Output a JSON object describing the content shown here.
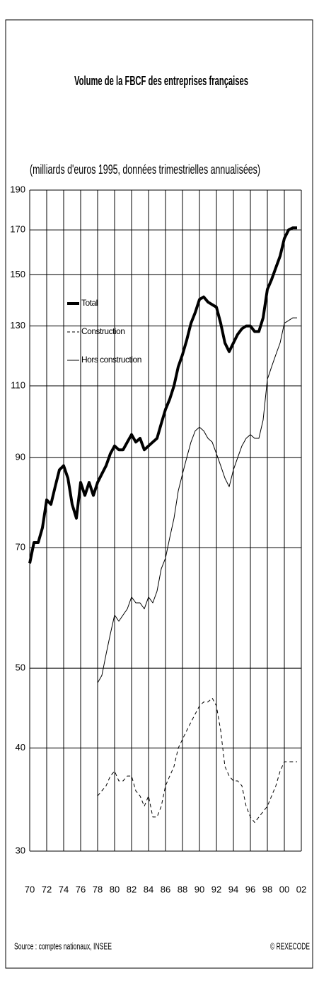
{
  "chart_data": {
    "type": "line",
    "title": "Volume de la FBCF des entreprises françaises",
    "subtitle": "(milliards d'euros 1995, données trimestrielles annualisées)",
    "source": "Source : comptes nationaux, INSEE",
    "credit": "© REXECODE",
    "yscale": "log",
    "grid": true,
    "legend": "upper left",
    "x": [
      1970,
      1970.5,
      1971,
      1971.5,
      1972,
      1972.5,
      1973,
      1973.5,
      1974,
      1974.5,
      1975,
      1975.5,
      1976,
      1976.5,
      1977,
      1977.5,
      1978,
      1978.5,
      1979,
      1979.5,
      1980,
      1980.5,
      1981,
      1981.5,
      1982,
      1982.5,
      1983,
      1983.5,
      1984,
      1984.5,
      1985,
      1985.5,
      1986,
      1986.5,
      1987,
      1987.5,
      1988,
      1988.5,
      1989,
      1989.5,
      1990,
      1990.5,
      1991,
      1991.5,
      1992,
      1992.5,
      1993,
      1993.5,
      1994,
      1994.5,
      1995,
      1995.5,
      1996,
      1996.5,
      1997,
      1997.5,
      1998,
      1998.5,
      1999,
      1999.5,
      2000,
      2000.5,
      2001,
      2001.5
    ],
    "series": [
      {
        "name": "Total",
        "color": "#000000",
        "line_width": 4,
        "dashed": false,
        "values": [
          67,
          71,
          71,
          74,
          80,
          79,
          83,
          87,
          88,
          85,
          79,
          76,
          84,
          81,
          84,
          81,
          84,
          86,
          88,
          91,
          93,
          92,
          92,
          94,
          96,
          94,
          95,
          92,
          93,
          94,
          95,
          99,
          103,
          106,
          110,
          116,
          120,
          125,
          131,
          135,
          140,
          141,
          139,
          138,
          137,
          131,
          124,
          121,
          124,
          127,
          129,
          130,
          130,
          128,
          128,
          133,
          144,
          148,
          153,
          158,
          166,
          170,
          171,
          171
        ]
      },
      {
        "name": "Construction",
        "color": "#000000",
        "line_width": 1,
        "dashed": true,
        "values": [
          null,
          null,
          null,
          null,
          null,
          null,
          null,
          null,
          null,
          null,
          null,
          null,
          null,
          null,
          null,
          null,
          35,
          35.5,
          36,
          37,
          37.5,
          36.5,
          36.5,
          37,
          37,
          35.5,
          35,
          34,
          35,
          33,
          33,
          34,
          36,
          37,
          38,
          40,
          41,
          42,
          43,
          44,
          45,
          45.5,
          45.5,
          46,
          45,
          42,
          38,
          37,
          36.5,
          36.5,
          36,
          34,
          33,
          32.5,
          33,
          33.5,
          34,
          35,
          36,
          37.5,
          38.5,
          38.5,
          38.5,
          38.5
        ]
      },
      {
        "name": "Hors construction",
        "color": "#000000",
        "line_width": 1,
        "dashed": false,
        "values": [
          null,
          null,
          null,
          null,
          null,
          null,
          null,
          null,
          null,
          null,
          null,
          null,
          null,
          null,
          null,
          null,
          48,
          49,
          52,
          55,
          58,
          57,
          58,
          59,
          61,
          60,
          60,
          59,
          61,
          60,
          62,
          66,
          68,
          72,
          76,
          82,
          86,
          90,
          94,
          97,
          98,
          97,
          95,
          94,
          91,
          88,
          85,
          83,
          87,
          90,
          93,
          95,
          96,
          95,
          95,
          100,
          112,
          116,
          120,
          124,
          131,
          132,
          133,
          133
        ]
      }
    ],
    "xlim": [
      1970,
      2002
    ],
    "xticks": [
      {
        "value": 1970,
        "label": "70"
      },
      {
        "value": 1972,
        "label": "72"
      },
      {
        "value": 1974,
        "label": "74"
      },
      {
        "value": 1976,
        "label": "76"
      },
      {
        "value": 1978,
        "label": "78"
      },
      {
        "value": 1980,
        "label": "80"
      },
      {
        "value": 1982,
        "label": "82"
      },
      {
        "value": 1984,
        "label": "84"
      },
      {
        "value": 1986,
        "label": "86"
      },
      {
        "value": 1988,
        "label": "88"
      },
      {
        "value": 1990,
        "label": "90"
      },
      {
        "value": 1992,
        "label": "92"
      },
      {
        "value": 1994,
        "label": "94"
      },
      {
        "value": 1996,
        "label": "96"
      },
      {
        "value": 1998,
        "label": "98"
      },
      {
        "value": 2000,
        "label": "00"
      },
      {
        "value": 2002,
        "label": "02"
      }
    ],
    "ylim": [
      30,
      190
    ],
    "yticks": [
      30,
      40,
      50,
      70,
      90,
      110,
      130,
      150,
      170,
      190
    ]
  }
}
